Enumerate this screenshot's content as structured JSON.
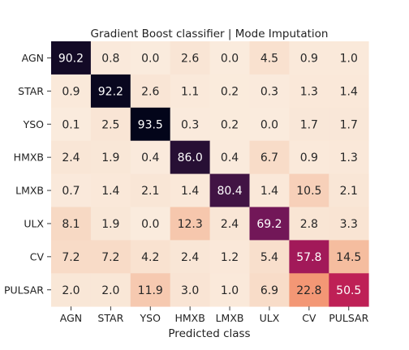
{
  "chart_data": {
    "type": "heatmap",
    "title": "Gradient Boost classifier | Mode Imputation",
    "xlabel": "Predicted class",
    "ylabel": "",
    "x_categories": [
      "AGN",
      "STAR",
      "YSO",
      "HMXB",
      "LMXB",
      "ULX",
      "CV",
      "PULSAR"
    ],
    "y_categories": [
      "AGN",
      "STAR",
      "YSO",
      "HMXB",
      "LMXB",
      "ULX",
      "CV",
      "PULSAR"
    ],
    "values": [
      [
        90.2,
        0.8,
        0.0,
        2.6,
        0.0,
        4.5,
        0.9,
        1.0
      ],
      [
        0.9,
        92.2,
        2.6,
        1.1,
        0.2,
        0.3,
        1.3,
        1.4
      ],
      [
        0.1,
        2.5,
        93.5,
        0.3,
        0.2,
        0.0,
        1.7,
        1.7
      ],
      [
        2.4,
        1.9,
        0.4,
        86.0,
        0.4,
        6.7,
        0.9,
        1.3
      ],
      [
        0.7,
        1.4,
        2.1,
        1.4,
        80.4,
        1.4,
        10.5,
        2.1
      ],
      [
        8.1,
        1.9,
        0.0,
        12.3,
        2.4,
        69.2,
        2.8,
        3.3
      ],
      [
        7.2,
        7.2,
        4.2,
        2.4,
        1.2,
        5.4,
        57.8,
        14.5
      ],
      [
        2.0,
        2.0,
        11.9,
        3.0,
        1.0,
        6.9,
        22.8,
        50.5
      ]
    ],
    "value_format": "one decimal",
    "colormap": "rocket_r",
    "colorbar": false,
    "grid": false
  }
}
